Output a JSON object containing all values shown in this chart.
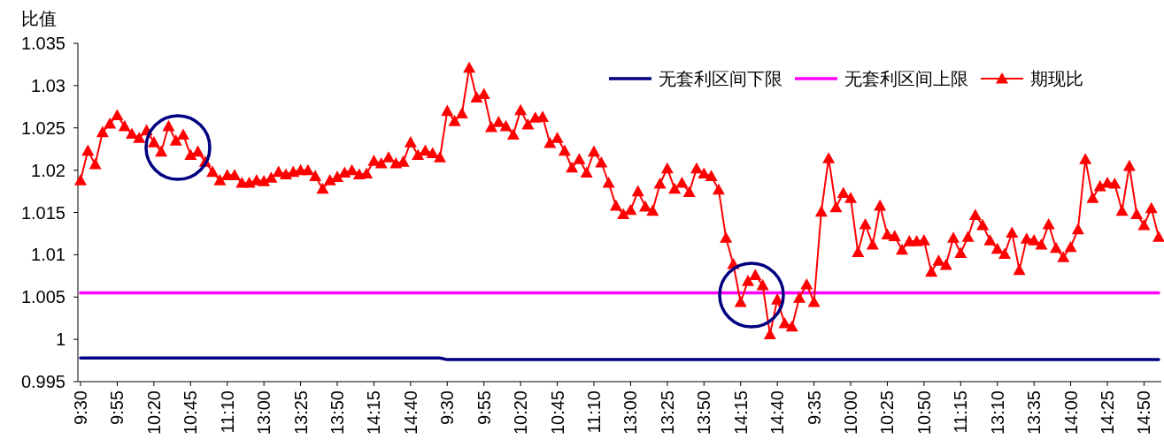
{
  "chart_data": {
    "type": "line",
    "ylabel": "比值",
    "legend": "top right",
    "ylim": [
      0.995,
      1.035
    ],
    "yticks": [
      0.995,
      1,
      1.005,
      1.01,
      1.015,
      1.02,
      1.025,
      1.03,
      1.035
    ],
    "categories": [
      "9:30",
      null,
      null,
      null,
      null,
      "9:55",
      null,
      null,
      null,
      null,
      "10:20",
      null,
      null,
      null,
      null,
      "10:45",
      null,
      null,
      null,
      null,
      "11:10",
      null,
      null,
      null,
      null,
      "13:00",
      null,
      null,
      null,
      null,
      "13:25",
      null,
      null,
      null,
      null,
      "13:50",
      null,
      null,
      null,
      null,
      "14:15",
      null,
      null,
      null,
      null,
      "14:40",
      null,
      null,
      null,
      null,
      "9:30",
      null,
      null,
      null,
      null,
      "9:55",
      null,
      null,
      null,
      null,
      "10:20",
      null,
      null,
      null,
      null,
      "10:45",
      null,
      null,
      null,
      null,
      "11:10",
      null,
      null,
      null,
      null,
      "13:00",
      null,
      null,
      null,
      null,
      "13:25",
      null,
      null,
      null,
      null,
      "13:50",
      null,
      null,
      null,
      null,
      "14:15",
      null,
      null,
      null,
      null,
      "14:40",
      null,
      null,
      null,
      null,
      "9:35",
      null,
      null,
      null,
      null,
      "10:00",
      null,
      null,
      null,
      null,
      "10:25",
      null,
      null,
      null,
      null,
      "10:50",
      null,
      null,
      null,
      null,
      "11:15",
      null,
      null,
      null,
      null,
      "13:10",
      null,
      null,
      null,
      null,
      "13:35",
      null,
      null,
      null,
      null,
      "14:00",
      null,
      null,
      null,
      null,
      "14:25",
      null,
      null,
      null,
      null,
      "14:50",
      null,
      null
    ],
    "series": [
      {
        "name": "无套利区间下限",
        "color": "#000080",
        "marker": "none",
        "values": [
          0.9978,
          0.9978,
          0.9978,
          0.9978,
          0.9978,
          0.9978,
          0.9978,
          0.9978,
          0.9978,
          0.9978,
          0.9978,
          0.9978,
          0.9978,
          0.9978,
          0.9978,
          0.9978,
          0.9978,
          0.9978,
          0.9978,
          0.9978,
          0.9978,
          0.9978,
          0.9978,
          0.9978,
          0.9978,
          0.9978,
          0.9978,
          0.9978,
          0.9978,
          0.9978,
          0.9978,
          0.9978,
          0.9978,
          0.9978,
          0.9978,
          0.9978,
          0.9978,
          0.9978,
          0.9978,
          0.9978,
          0.9978,
          0.9978,
          0.9978,
          0.9978,
          0.9978,
          0.9978,
          0.9978,
          0.9978,
          0.9978,
          0.9978,
          0.9976,
          0.9976,
          0.9976,
          0.9976,
          0.9976,
          0.9976,
          0.9976,
          0.9976,
          0.9976,
          0.9976,
          0.9976,
          0.9976,
          0.9976,
          0.9976,
          0.9976,
          0.9976,
          0.9976,
          0.9976,
          0.9976,
          0.9976,
          0.9976,
          0.9976,
          0.9976,
          0.9976,
          0.9976,
          0.9976,
          0.9976,
          0.9976,
          0.9976,
          0.9976,
          0.9976,
          0.9976,
          0.9976,
          0.9976,
          0.9976,
          0.9976,
          0.9976,
          0.9976,
          0.9976,
          0.9976,
          0.9976,
          0.9976,
          0.9976,
          0.9976,
          0.9976,
          0.9976,
          0.9976,
          0.9976,
          0.9976,
          0.9976,
          0.9976,
          0.9976,
          0.9976,
          0.9976,
          0.9976,
          0.9976,
          0.9976,
          0.9976,
          0.9976,
          0.9976,
          0.9976,
          0.9976,
          0.9976,
          0.9976,
          0.9976,
          0.9976,
          0.9976,
          0.9976,
          0.9976,
          0.9976,
          0.9976,
          0.9976,
          0.9976,
          0.9976,
          0.9976,
          0.9976,
          0.9976,
          0.9976,
          0.9976,
          0.9976,
          0.9976,
          0.9976,
          0.9976,
          0.9976,
          0.9976,
          0.9976,
          0.9976,
          0.9976,
          0.9976,
          0.9976,
          0.9976,
          0.9976,
          0.9976,
          0.9976,
          0.9976,
          0.9976,
          0.9976,
          0.9976
        ]
      },
      {
        "name": "无套利区间上限",
        "color": "#ff00ff",
        "marker": "none",
        "values": [
          1.0055,
          1.0055,
          1.0055,
          1.0055,
          1.0055,
          1.0055,
          1.0055,
          1.0055,
          1.0055,
          1.0055,
          1.0055,
          1.0055,
          1.0055,
          1.0055,
          1.0055,
          1.0055,
          1.0055,
          1.0055,
          1.0055,
          1.0055,
          1.0055,
          1.0055,
          1.0055,
          1.0055,
          1.0055,
          1.0055,
          1.0055,
          1.0055,
          1.0055,
          1.0055,
          1.0055,
          1.0055,
          1.0055,
          1.0055,
          1.0055,
          1.0055,
          1.0055,
          1.0055,
          1.0055,
          1.0055,
          1.0055,
          1.0055,
          1.0055,
          1.0055,
          1.0055,
          1.0055,
          1.0055,
          1.0055,
          1.0055,
          1.0055,
          1.0055,
          1.0055,
          1.0055,
          1.0055,
          1.0055,
          1.0055,
          1.0055,
          1.0055,
          1.0055,
          1.0055,
          1.0055,
          1.0055,
          1.0055,
          1.0055,
          1.0055,
          1.0055,
          1.0055,
          1.0055,
          1.0055,
          1.0055,
          1.0055,
          1.0055,
          1.0055,
          1.0055,
          1.0055,
          1.0055,
          1.0055,
          1.0055,
          1.0055,
          1.0055,
          1.0055,
          1.0055,
          1.0055,
          1.0055,
          1.0055,
          1.0055,
          1.0055,
          1.0055,
          1.0055,
          1.0055,
          1.0055,
          1.0055,
          1.0055,
          1.0055,
          1.0055,
          1.0055,
          1.0055,
          1.0055,
          1.0055,
          1.0055,
          1.0055,
          1.0055,
          1.0055,
          1.0055,
          1.0055,
          1.0055,
          1.0055,
          1.0055,
          1.0055,
          1.0055,
          1.0055,
          1.0055,
          1.0055,
          1.0055,
          1.0055,
          1.0055,
          1.0055,
          1.0055,
          1.0055,
          1.0055,
          1.0055,
          1.0055,
          1.0055,
          1.0055,
          1.0055,
          1.0055,
          1.0055,
          1.0055,
          1.0055,
          1.0055,
          1.0055,
          1.0055,
          1.0055,
          1.0055,
          1.0055,
          1.0055,
          1.0055,
          1.0055,
          1.0055,
          1.0055,
          1.0055,
          1.0055,
          1.0055,
          1.0055,
          1.0055,
          1.0055,
          1.0055,
          1.0055
        ]
      },
      {
        "name": "期现比",
        "color": "#ff0000",
        "marker": "triangle",
        "values": [
          1.0188,
          1.0223,
          1.0207,
          1.0245,
          1.0255,
          1.0265,
          1.0252,
          1.0243,
          1.0238,
          1.0247,
          1.0233,
          1.0222,
          1.0252,
          1.0235,
          1.0242,
          1.0218,
          1.0222,
          1.021,
          1.0198,
          1.0188,
          1.0194,
          1.0194,
          1.0185,
          1.0185,
          1.0188,
          1.0187,
          1.0191,
          1.0198,
          1.0195,
          1.0198,
          1.02,
          1.02,
          1.0193,
          1.0178,
          1.0188,
          1.0192,
          1.0197,
          1.02,
          1.0195,
          1.0196,
          1.0211,
          1.0208,
          1.0215,
          1.0208,
          1.021,
          1.0233,
          1.0218,
          1.0223,
          1.022,
          1.0215,
          1.027,
          1.0258,
          1.0267,
          1.0321,
          1.0286,
          1.029,
          1.0251,
          1.0257,
          1.0252,
          1.0242,
          1.0271,
          1.0254,
          1.0262,
          1.0263,
          1.0232,
          1.0238,
          1.0223,
          1.0203,
          1.0213,
          1.0197,
          1.0222,
          1.0209,
          1.0185,
          1.0158,
          1.0148,
          1.0153,
          1.0175,
          1.0157,
          1.0152,
          1.0184,
          1.0202,
          1.0178,
          1.0185,
          1.0174,
          1.0202,
          1.0196,
          1.0193,
          1.0177,
          1.012,
          1.0089,
          1.0044,
          1.0069,
          1.0076,
          1.0064,
          1.0006,
          1.0047,
          1.0019,
          1.0015,
          1.0049,
          1.0065,
          1.0044,
          1.0151,
          1.0214,
          1.0156,
          1.0173,
          1.0167,
          1.0103,
          1.0136,
          1.0112,
          1.0158,
          1.0124,
          1.0122,
          1.0106,
          1.0116,
          1.0116,
          1.0117,
          1.008,
          1.0093,
          1.0088,
          1.012,
          1.0102,
          1.0121,
          1.0147,
          1.0135,
          1.0117,
          1.0107,
          1.0101,
          1.0126,
          1.0082,
          1.0119,
          1.0117,
          1.0112,
          1.0136,
          1.0108,
          1.0097,
          1.0109,
          1.013,
          1.0213,
          1.0167,
          1.0181,
          1.0185,
          1.0184,
          1.0152,
          1.0205,
          1.0148,
          1.0135,
          1.0155,
          1.0121
        ]
      }
    ]
  }
}
